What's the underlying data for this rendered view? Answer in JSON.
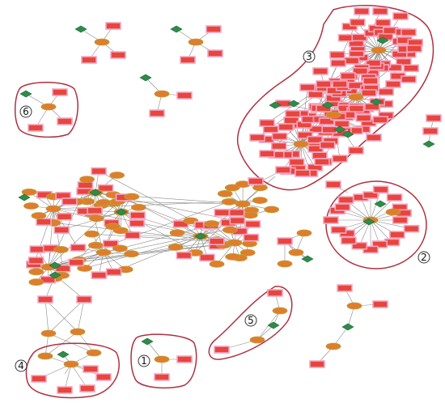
{
  "figure": {
    "module_labels": [
      "1",
      "2",
      "3",
      "4",
      "5",
      "6"
    ]
  },
  "colors": {
    "background": "#ffffff",
    "target_gene_node": "#e8453c",
    "target_gene_node_outline": "#f2a6c4",
    "mirna_node": "#e07d2c",
    "lncrna_node": "#2e8b4a",
    "edge": "#8a8a8a",
    "module_outline": "#b03040"
  },
  "legend": {
    "rect_node": "target-gene-node",
    "oval_node": "mirna-node",
    "diamond_node": "lncrna-node"
  }
}
